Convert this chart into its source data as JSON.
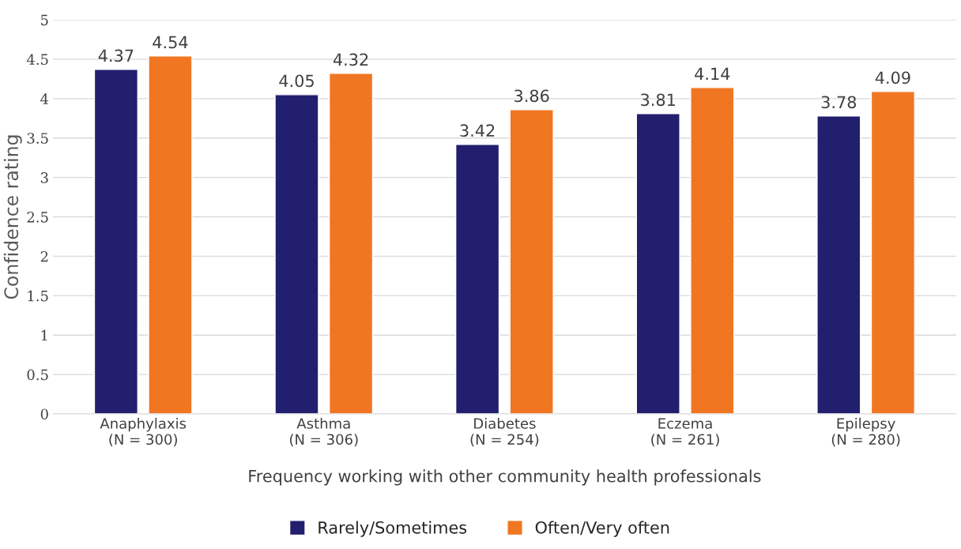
{
  "chart_data": {
    "type": "bar",
    "xlabel": "Frequency working with other community health professionals",
    "ylabel": "Confidence rating",
    "categories": [
      "Anaphylaxis\n(N = 300)",
      "Asthma\n(N = 306)",
      "Diabetes\n(N = 254)",
      "Eczema\n(N = 261)",
      "Epilepsy\n(N = 280)"
    ],
    "series": [
      {
        "name": "Rarely/Sometimes",
        "color": "#221f6e",
        "values": [
          4.37,
          4.05,
          3.42,
          3.81,
          3.78
        ]
      },
      {
        "name": "Often/Very often",
        "color": "#f07622",
        "values": [
          4.54,
          4.32,
          3.86,
          4.14,
          4.09
        ]
      }
    ],
    "ylim": [
      0,
      5
    ],
    "yticks": [
      0,
      0.5,
      1,
      1.5,
      2,
      2.5,
      3,
      3.5,
      4,
      4.5,
      5
    ],
    "grid": "y",
    "legend": "bottom",
    "data_labels": true
  }
}
